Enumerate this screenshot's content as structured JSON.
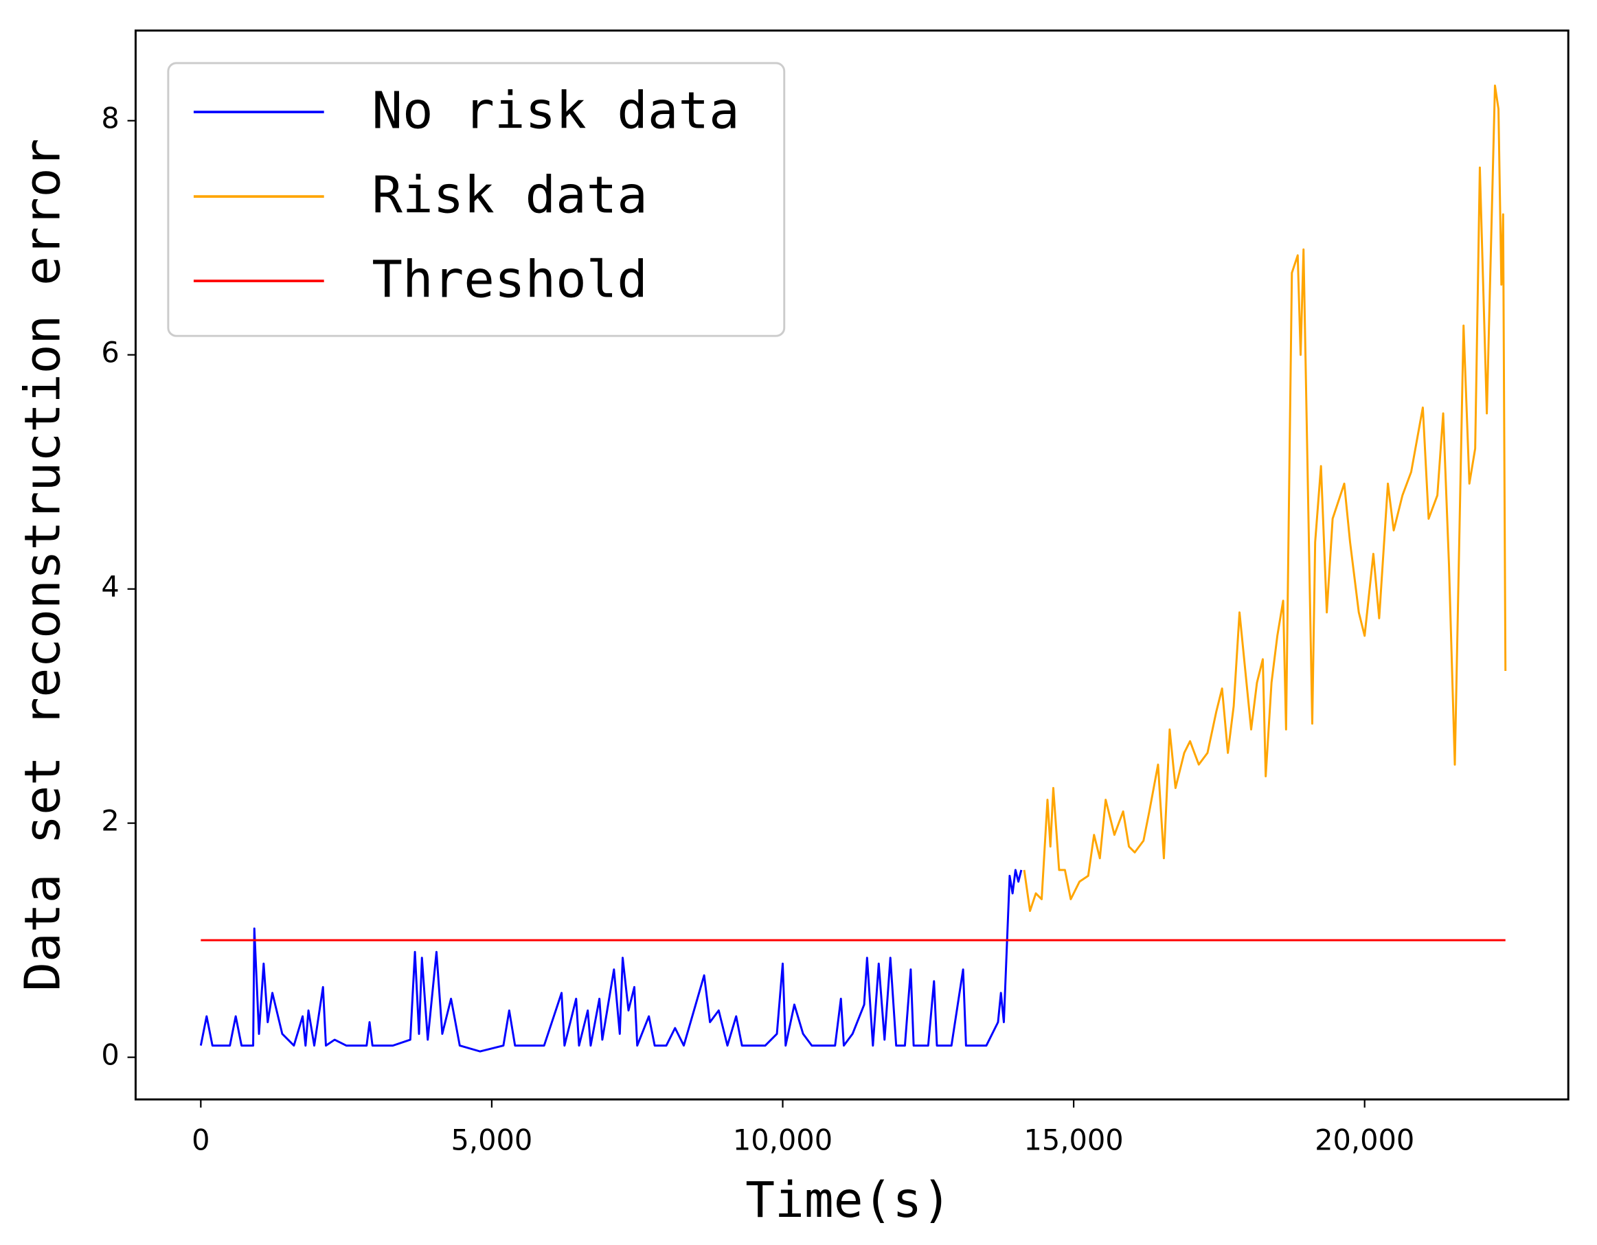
{
  "chart_data": {
    "type": "line",
    "x_label": "Time(s)",
    "y_label": "Data set reconstruction error",
    "xlim": [
      -1120,
      23500
    ],
    "ylim": [
      -0.36,
      8.77
    ],
    "xticks": [
      0,
      {
        "value": 5000,
        "label": "5,000"
      },
      {
        "value": 10000,
        "label": "10,000"
      },
      {
        "value": 15000,
        "label": "15,000"
      },
      {
        "value": 20000,
        "label": "20,000"
      }
    ],
    "yticks": [
      0,
      2,
      4,
      6,
      8
    ],
    "legend": "upper left",
    "series": [
      {
        "name": "No risk data",
        "color": "#0000ff",
        "x": [
          0,
          100,
          200,
          500,
          600,
          700,
          900,
          920,
          1000,
          1080,
          1150,
          1230,
          1400,
          1600,
          1750,
          1800,
          1850,
          1950,
          2100,
          2150,
          2300,
          2500,
          2850,
          2900,
          2950,
          3300,
          3600,
          3680,
          3750,
          3800,
          3900,
          4050,
          4150,
          4300,
          4450,
          4800,
          5200,
          5300,
          5400,
          5900,
          6200,
          6250,
          6450,
          6500,
          6650,
          6700,
          6850,
          6900,
          7100,
          7200,
          7250,
          7350,
          7450,
          7500,
          7700,
          7800,
          8000,
          8150,
          8300,
          8650,
          8750,
          8900,
          9050,
          9200,
          9300,
          9700,
          9900,
          10000,
          10050,
          10200,
          10350,
          10500,
          10900,
          11000,
          11050,
          11200,
          11400,
          11450,
          11550,
          11650,
          11750,
          11850,
          11950,
          12100,
          12200,
          12250,
          12500,
          12600,
          12650,
          12900,
          13100,
          13150,
          13500,
          13700,
          13750,
          13800,
          13900,
          13950,
          14000,
          14050,
          14100
        ],
        "values": [
          0.1,
          0.35,
          0.1,
          0.1,
          0.35,
          0.1,
          0.1,
          1.1,
          0.2,
          0.8,
          0.3,
          0.55,
          0.2,
          0.1,
          0.35,
          0.1,
          0.4,
          0.1,
          0.6,
          0.1,
          0.15,
          0.1,
          0.1,
          0.3,
          0.1,
          0.1,
          0.15,
          0.9,
          0.2,
          0.85,
          0.15,
          0.9,
          0.2,
          0.5,
          0.1,
          0.05,
          0.1,
          0.4,
          0.1,
          0.1,
          0.55,
          0.1,
          0.5,
          0.1,
          0.4,
          0.1,
          0.5,
          0.15,
          0.75,
          0.2,
          0.85,
          0.4,
          0.6,
          0.1,
          0.35,
          0.1,
          0.1,
          0.25,
          0.1,
          0.7,
          0.3,
          0.4,
          0.1,
          0.35,
          0.1,
          0.1,
          0.2,
          0.8,
          0.1,
          0.45,
          0.2,
          0.1,
          0.1,
          0.5,
          0.1,
          0.2,
          0.45,
          0.85,
          0.1,
          0.8,
          0.15,
          0.85,
          0.1,
          0.1,
          0.75,
          0.1,
          0.1,
          0.65,
          0.1,
          0.1,
          0.75,
          0.1,
          0.1,
          0.3,
          0.55,
          0.3,
          1.55,
          1.4,
          1.6,
          1.5,
          1.6
        ]
      },
      {
        "name": "Risk data",
        "color": "#ffa500",
        "x": [
          14150,
          14250,
          14350,
          14450,
          14550,
          14600,
          14650,
          14750,
          14850,
          14950,
          15100,
          15250,
          15350,
          15450,
          15550,
          15700,
          15850,
          15950,
          16050,
          16200,
          16300,
          16450,
          16550,
          16650,
          16750,
          16900,
          17000,
          17150,
          17300,
          17450,
          17550,
          17650,
          17750,
          17850,
          17950,
          18050,
          18150,
          18250,
          18300,
          18400,
          18500,
          18600,
          18650,
          18750,
          18850,
          18900,
          18950,
          19050,
          19100,
          19150,
          19250,
          19350,
          19450,
          19650,
          19750,
          19900,
          20000,
          20150,
          20250,
          20400,
          20500,
          20650,
          20800,
          21000,
          21100,
          21250,
          21350,
          21450,
          21550,
          21700,
          21800,
          21900,
          21980,
          22100,
          22240,
          22300,
          22350,
          22380,
          22420
        ],
        "values": [
          1.6,
          1.25,
          1.4,
          1.35,
          2.2,
          1.8,
          2.3,
          1.6,
          1.6,
          1.35,
          1.5,
          1.55,
          1.9,
          1.7,
          2.2,
          1.9,
          2.1,
          1.8,
          1.75,
          1.85,
          2.1,
          2.5,
          1.7,
          2.8,
          2.3,
          2.6,
          2.7,
          2.5,
          2.6,
          2.95,
          3.15,
          2.6,
          3.0,
          3.8,
          3.3,
          2.8,
          3.2,
          3.4,
          2.4,
          3.2,
          3.6,
          3.9,
          2.8,
          6.7,
          6.85,
          6.0,
          6.9,
          4.2,
          2.85,
          4.4,
          5.05,
          3.8,
          4.6,
          4.9,
          4.4,
          3.8,
          3.6,
          4.3,
          3.75,
          4.9,
          4.5,
          4.8,
          5.0,
          5.55,
          4.6,
          4.8,
          5.5,
          4.2,
          2.5,
          6.25,
          4.9,
          5.2,
          7.6,
          5.5,
          8.3,
          8.1,
          6.6,
          7.2,
          3.3
        ]
      },
      {
        "name": "Threshold",
        "color": "#ff0000",
        "x": [
          0,
          22420
        ],
        "values": [
          1,
          1
        ]
      }
    ]
  }
}
